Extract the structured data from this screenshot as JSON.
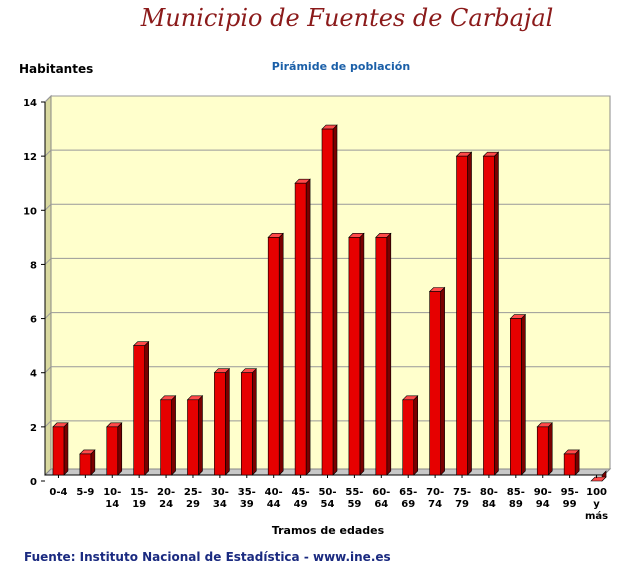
{
  "header": {
    "title": "Municipio de Fuentes de Carbajal",
    "subtitle": "Pirámide de población"
  },
  "footer": {
    "source": "Fuente: Instituto Nacional de Estadística - www.ine.es"
  },
  "colors": {
    "title": "#8b1a1a",
    "subtitle": "#1a5fa8",
    "plot_background": "#ffffcc",
    "bar": "#e60000"
  },
  "chart_data": {
    "type": "bar",
    "title": "Pirámide de población",
    "ylabel": "Habitantes",
    "xlabel": "Tramos de edades",
    "categories": [
      "0-4",
      "5-9",
      "10-14",
      "15-19",
      "20-24",
      "25-29",
      "30-34",
      "35-39",
      "40-44",
      "45-49",
      "50-54",
      "55-59",
      "60-64",
      "65-69",
      "70-74",
      "75-79",
      "80-84",
      "85-89",
      "90-94",
      "95-99",
      "100 y más"
    ],
    "category_lines": [
      [
        "0-4"
      ],
      [
        "5-9"
      ],
      [
        "10-",
        "14"
      ],
      [
        "15-",
        "19"
      ],
      [
        "20-",
        "24"
      ],
      [
        "25-",
        "29"
      ],
      [
        "30-",
        "34"
      ],
      [
        "35-",
        "39"
      ],
      [
        "40-",
        "44"
      ],
      [
        "45-",
        "49"
      ],
      [
        "50-",
        "54"
      ],
      [
        "55-",
        "59"
      ],
      [
        "60-",
        "64"
      ],
      [
        "65-",
        "69"
      ],
      [
        "70-",
        "74"
      ],
      [
        "75-",
        "79"
      ],
      [
        "80-",
        "84"
      ],
      [
        "85-",
        "89"
      ],
      [
        "90-",
        "94"
      ],
      [
        "95-",
        "99"
      ],
      [
        "100",
        "y",
        "más"
      ]
    ],
    "values": [
      2,
      1,
      2,
      5,
      3,
      3,
      4,
      4,
      9,
      11,
      13,
      9,
      9,
      3,
      7,
      12,
      12,
      6,
      2,
      1,
      0
    ],
    "ylim": [
      0,
      14
    ],
    "yticks": [
      0,
      2,
      4,
      6,
      8,
      10,
      12,
      14
    ],
    "grid": true,
    "legend": "none"
  }
}
